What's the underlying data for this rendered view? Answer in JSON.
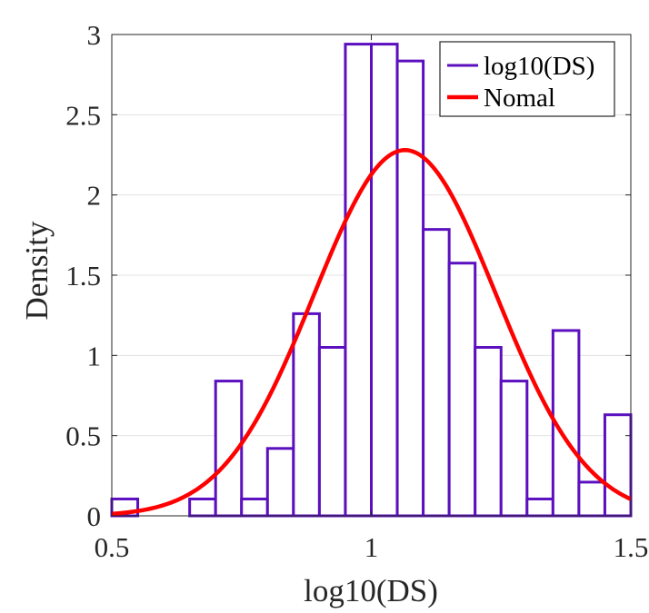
{
  "chart_data": {
    "type": "bar",
    "title": "",
    "xlabel": "log10(DS)",
    "ylabel": "Density",
    "xlim": [
      0.5,
      1.5
    ],
    "ylim": [
      0,
      3
    ],
    "xticks": [
      0.5,
      1,
      1.5
    ],
    "xtick_labels": [
      "0.5",
      "1",
      "1.5"
    ],
    "yticks": [
      0,
      0.5,
      1,
      1.5,
      2,
      2.5,
      3
    ],
    "ytick_labels": [
      "0",
      "0.5",
      "1",
      "1.5",
      "2",
      "2.5",
      "3"
    ],
    "grid": true,
    "legend_position": "top-right",
    "series": [
      {
        "name": "log10(DS)",
        "kind": "histogram",
        "color": "#5b0fbf",
        "bin_edges": [
          0.5,
          0.55,
          0.6,
          0.65,
          0.7,
          0.75,
          0.8,
          0.85,
          0.9,
          0.95,
          1.0,
          1.05,
          1.1,
          1.15,
          1.2,
          1.25,
          1.3,
          1.35,
          1.4,
          1.45,
          1.5
        ],
        "values": [
          0.105,
          0.0,
          0.0,
          0.105,
          0.84,
          0.105,
          0.42,
          1.26,
          1.05,
          2.94,
          2.94,
          2.835,
          1.785,
          1.575,
          1.05,
          0.84,
          0.105,
          1.155,
          0.21,
          0.63
        ]
      },
      {
        "name": "Nomal",
        "kind": "normal-fit",
        "color": "#ff0000",
        "mean": 1.065,
        "std": 0.175,
        "range": [
          0.5,
          1.5
        ]
      }
    ]
  }
}
